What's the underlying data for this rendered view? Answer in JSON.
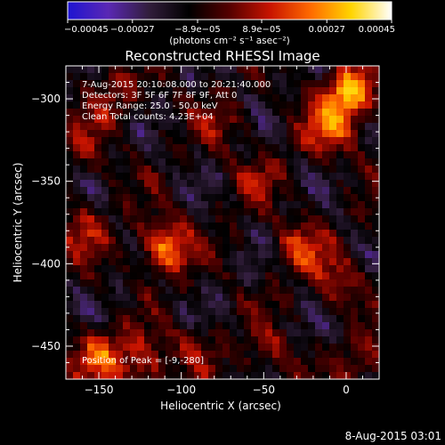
{
  "chart_data": {
    "type": "heatmap",
    "title": "Reconstructed RHESSI Image",
    "xlabel": "Heliocentric X (arcsec)",
    "ylabel": "Heliocentric Y (arcsec)",
    "xlim": [
      -170,
      20
    ],
    "ylim": [
      -470,
      -280
    ],
    "x_ticks": [
      -150,
      -100,
      -50,
      0
    ],
    "x_tick_labels": [
      "−150",
      "−100",
      "−50",
      "0"
    ],
    "y_ticks": [
      -300,
      -350,
      -400,
      -450
    ],
    "y_tick_labels": [
      "−300",
      "−350",
      "−400",
      "−450"
    ],
    "info_lines": [
      "7-Aug-2015 20:10:08.000 to 20:21:40.000",
      "Detectors: 3F 5F 6F 7F 8F 9F, Att 0",
      "Energy Range: 25.0 - 50.0 keV",
      "Clean     Total counts: 4.23E+04"
    ],
    "peak_label": "Position of Peak = [-9,-280]",
    "footer_date": "8-Aug-2015 03:01",
    "colorbar": {
      "range": [
        -0.00045,
        0.00045
      ],
      "tick_values": [
        -0.00045,
        -0.00027,
        -8.9e-05,
        8.9e-05,
        0.00027,
        0.00045
      ],
      "tick_labels": [
        "−0.00045",
        "−0.00027",
        "−8.9e−05",
        "8.9e−05",
        "0.00027",
        "0.00045"
      ],
      "units_label": "(photons cm⁻² s⁻¹ asec⁻²)",
      "colors": [
        "#1e14d2",
        "#5a28b4",
        "#321e3c",
        "#000000",
        "#550000",
        "#c81400",
        "#ff6a00",
        "#ffd400",
        "#ffffff"
      ]
    },
    "sources": [
      {
        "x": -110,
        "y": -390,
        "amplitude": 0.00036
      },
      {
        "x": 2,
        "y": -296,
        "amplitude": 0.00043
      },
      {
        "x": -10,
        "y": -318,
        "amplitude": 0.00028
      },
      {
        "x": -28,
        "y": -390,
        "amplitude": 0.00022
      },
      {
        "x": -5,
        "y": -410,
        "amplitude": 0.00018
      },
      {
        "x": -150,
        "y": -455,
        "amplitude": 0.0003
      },
      {
        "x": -125,
        "y": -462,
        "amplitude": 0.00022
      },
      {
        "x": -160,
        "y": -380,
        "amplitude": 0.00018
      },
      {
        "x": -140,
        "y": -300,
        "amplitude": 0.00016
      },
      {
        "x": -90,
        "y": -450,
        "amplitude": 0.00015
      },
      {
        "x": -45,
        "y": -455,
        "amplitude": 0.00014
      },
      {
        "x": -75,
        "y": -315,
        "amplitude": 0.00012
      },
      {
        "x": -55,
        "y": -350,
        "amplitude": 0.00012
      },
      {
        "x": 10,
        "y": -460,
        "amplitude": 0.00015
      },
      {
        "x": -160,
        "y": -330,
        "amplitude": 0.00013
      }
    ]
  }
}
